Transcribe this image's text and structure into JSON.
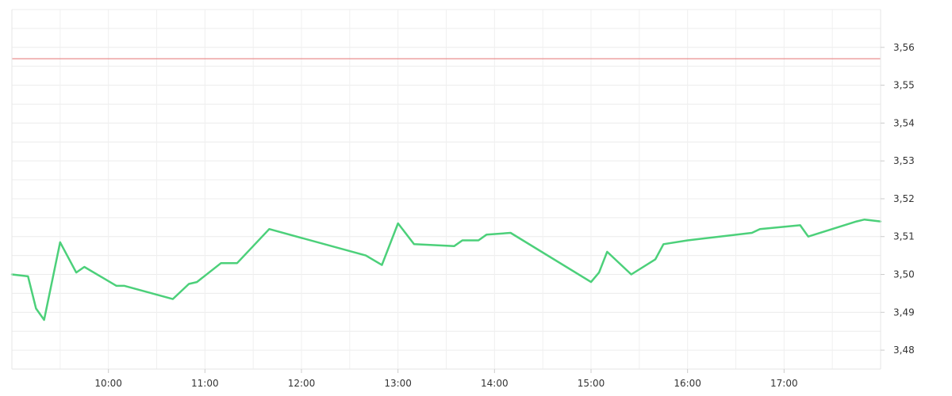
{
  "chart_data": {
    "type": "line",
    "title": "",
    "xlabel": "",
    "ylabel": "",
    "grid": true,
    "legend": "none",
    "x_range": [
      "09:00",
      "18:00"
    ],
    "ylim": [
      3.475,
      3.57
    ],
    "x_ticks": [
      "10:00",
      "11:00",
      "12:00",
      "13:00",
      "14:00",
      "15:00",
      "16:00",
      "17:00"
    ],
    "y_ticks": [
      "3,48",
      "3,49",
      "3,50",
      "3,51",
      "3,52",
      "3,53",
      "3,54",
      "3,55",
      "3,56"
    ],
    "reference_line": {
      "value": 3.557,
      "color": "#e57373"
    },
    "series": [
      {
        "color": "#4cd07a",
        "points": [
          {
            "x": "09:00",
            "y": 3.5
          },
          {
            "x": "09:10",
            "y": 3.4995
          },
          {
            "x": "09:15",
            "y": 3.491
          },
          {
            "x": "09:20",
            "y": 3.488
          },
          {
            "x": "09:30",
            "y": 3.5085
          },
          {
            "x": "09:40",
            "y": 3.5005
          },
          {
            "x": "09:45",
            "y": 3.502
          },
          {
            "x": "10:05",
            "y": 3.497
          },
          {
            "x": "10:10",
            "y": 3.497
          },
          {
            "x": "10:40",
            "y": 3.4935
          },
          {
            "x": "10:50",
            "y": 3.4975
          },
          {
            "x": "10:55",
            "y": 3.498
          },
          {
            "x": "11:10",
            "y": 3.503
          },
          {
            "x": "11:20",
            "y": 3.503
          },
          {
            "x": "11:40",
            "y": 3.512
          },
          {
            "x": "12:40",
            "y": 3.505
          },
          {
            "x": "12:50",
            "y": 3.5025
          },
          {
            "x": "13:00",
            "y": 3.5135
          },
          {
            "x": "13:10",
            "y": 3.508
          },
          {
            "x": "13:35",
            "y": 3.5075
          },
          {
            "x": "13:40",
            "y": 3.509
          },
          {
            "x": "13:50",
            "y": 3.509
          },
          {
            "x": "13:55",
            "y": 3.5105
          },
          {
            "x": "14:10",
            "y": 3.511
          },
          {
            "x": "15:00",
            "y": 3.498
          },
          {
            "x": "15:05",
            "y": 3.5005
          },
          {
            "x": "15:10",
            "y": 3.506
          },
          {
            "x": "15:25",
            "y": 3.5
          },
          {
            "x": "15:40",
            "y": 3.504
          },
          {
            "x": "15:45",
            "y": 3.508
          },
          {
            "x": "16:00",
            "y": 3.509
          },
          {
            "x": "16:40",
            "y": 3.511
          },
          {
            "x": "16:45",
            "y": 3.512
          },
          {
            "x": "17:10",
            "y": 3.513
          },
          {
            "x": "17:15",
            "y": 3.51
          },
          {
            "x": "17:45",
            "y": 3.514
          },
          {
            "x": "17:50",
            "y": 3.5145
          },
          {
            "x": "18:00",
            "y": 3.514
          }
        ]
      }
    ]
  }
}
